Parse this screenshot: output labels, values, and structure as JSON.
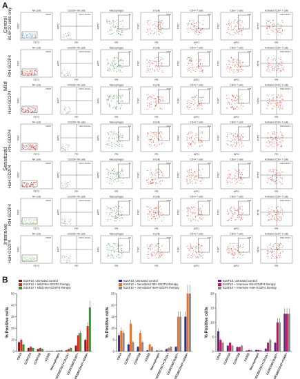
{
  "panel_letters": {
    "a": "A",
    "b": "B"
  },
  "groups": [
    "Control",
    "Mild",
    "Sensitized",
    "Intensive"
  ],
  "rows": [
    "B16F10 cells only",
    "RtH-GD2P4",
    "HaH-GD2P4",
    "RtH-GD2P4",
    "HaH-GD2P4",
    "RtH-GD2P4",
    "HaH-GD2P4"
  ],
  "flow_columns": [
    {
      "title": "NK cells",
      "x": "FITC",
      "y": "SSC",
      "gate": "CD335"
    },
    {
      "title": "CD335+ NK cells",
      "x": "PE",
      "y": "APC",
      "gate": "CD27+CD11b+"
    },
    {
      "title": "Macrophages",
      "x": "PE",
      "y": "APC",
      "gate": "M1"
    },
    {
      "title": "B cells",
      "x": "PE",
      "y": "FSC",
      "gate": "CD19"
    },
    {
      "title": "CD4+ T cells",
      "x": "APC",
      "y": "FSC",
      "gate": "CD4"
    },
    {
      "title": "CD8+ T cells",
      "x": "APC",
      "y": "FSC",
      "gate": "CD8"
    },
    {
      "title": "Activated CD8+ T cells",
      "x": "PE",
      "y": "FITC",
      "gate": "CD8+CD107+"
    }
  ],
  "colors": {
    "series1": "#8b1a1a",
    "series2": "#d62f1f",
    "series3": "#2e9a2e",
    "blue": "#2f2f8f",
    "orange": "#e8742a",
    "purple": "#6a1f86",
    "magenta": "#c2185b",
    "gray": "#8a8a8a",
    "light_blue": "#5bb3e0",
    "green_dots": "#2e7d32",
    "red_dots": "#d62f1f"
  },
  "chart_data": [
    {
      "type": "bar",
      "categories": [
        "CD19",
        "CD3/CD4",
        "CD3/CD8",
        "CD335",
        "Macrophages",
        "CD335/CD27+CD11b+",
        "CD3/CD8/CD107+",
        "CD3/CD8/CD107+CD69+"
      ],
      "series": [
        {
          "name": "B16F10, untreated control",
          "values": [
            8,
            3,
            2,
            0.3,
            0.5,
            1,
            5,
            10
          ],
          "color": "#8b1a1a"
        },
        {
          "name": "B16F10 + Mild RtH-GD2P4 therapy",
          "values": [
            10,
            4,
            3,
            0.4,
            0.8,
            2,
            14,
            22
          ],
          "color": "#d62f1f"
        },
        {
          "name": "B16F10 + Mild HaH-GD2P4 therapy",
          "values": [
            6,
            3,
            2,
            0.5,
            1,
            3,
            16,
            38
          ],
          "color": "#2e9a2e"
        }
      ],
      "ylabel": "% Positive cells",
      "ylim": [
        0,
        50
      ],
      "yticks": [
        0,
        10,
        20,
        30,
        40,
        50
      ]
    },
    {
      "type": "bar",
      "categories": [
        "CD19",
        "CD3/CD4",
        "CD3/CD8",
        "CD335",
        "Macrophages",
        "CD335/CD27+CD11b+",
        "CD3/CD8/CD107+",
        "CD3/CD8/CD107+CD69+"
      ],
      "series": [
        {
          "name": "B16F10, untreated control",
          "values": [
            7,
            3,
            2,
            0.5,
            0.4,
            1,
            2,
            15
          ],
          "color": "#2f2f8f"
        },
        {
          "name": "B16F10 + Sensitized RtH-GD2P4 therapy",
          "values": [
            9,
            12,
            8,
            3,
            0.4,
            1.5,
            15,
            25
          ],
          "color": "#e8742a"
        },
        {
          "name": "B16F10 + Sensitized HaH-GD2P4 therapy",
          "values": [
            8,
            4,
            4,
            2,
            0.5,
            2,
            15,
            25
          ],
          "color": "#8a8a8a"
        }
      ],
      "ylabel": "% Positive cells",
      "ylim": [
        0,
        25
      ],
      "yticks": [
        0,
        5,
        10,
        15,
        20,
        25
      ]
    },
    {
      "type": "bar",
      "categories": [
        "CD19",
        "CD3/CD4",
        "CD3/CD8",
        "CD335",
        "Macrophages",
        "CD335/CD27+CD11b+",
        "CD3/CD8/CD107+",
        "CD3/CD8/CD107+CD69+"
      ],
      "series": [
        {
          "name": "B16F10, untreated control",
          "values": [
            7,
            2,
            1.5,
            0.3,
            0.5,
            1,
            3,
            13
          ],
          "color": "#6a1f86"
        },
        {
          "name": "B16F10 + Intensive RtH-GD2P4 therapy",
          "values": [
            4,
            3,
            1.5,
            0.5,
            0.5,
            3,
            10,
            13
          ],
          "color": "#c2185b"
        },
        {
          "name": "B16F10 + Intensive HaH-GD2P4 therapy",
          "values": [
            3,
            2,
            2,
            0.4,
            0.4,
            4,
            10,
            13
          ],
          "color": "#8a8a8a"
        }
      ],
      "ylabel": "% Positive cells",
      "ylim": [
        0,
        20
      ],
      "yticks": [
        0,
        5,
        10,
        15,
        20
      ]
    }
  ]
}
